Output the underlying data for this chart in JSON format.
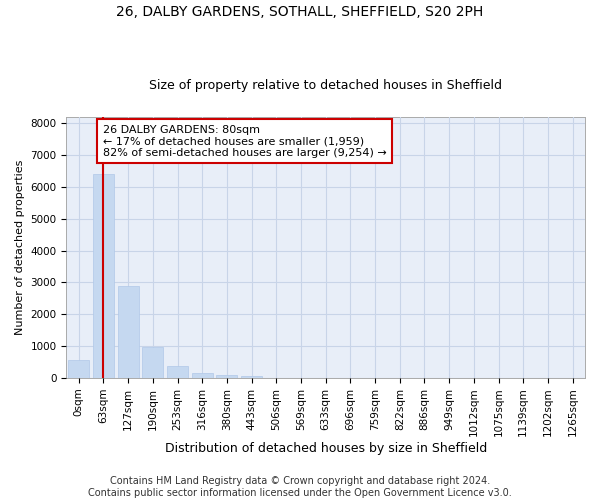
{
  "title1": "26, DALBY GARDENS, SOTHALL, SHEFFIELD, S20 2PH",
  "title2": "Size of property relative to detached houses in Sheffield",
  "xlabel": "Distribution of detached houses by size in Sheffield",
  "ylabel": "Number of detached properties",
  "bar_color": "#c5d8f0",
  "bar_edge_color": "#b0c8e8",
  "vline_color": "#cc0000",
  "vline_x": 1.0,
  "annotation_text": "26 DALBY GARDENS: 80sqm\n← 17% of detached houses are smaller (1,959)\n82% of semi-detached houses are larger (9,254) →",
  "annotation_box_color": "#cc0000",
  "bin_labels": [
    "0sqm",
    "63sqm",
    "127sqm",
    "190sqm",
    "253sqm",
    "316sqm",
    "380sqm",
    "443sqm",
    "506sqm",
    "569sqm",
    "633sqm",
    "696sqm",
    "759sqm",
    "822sqm",
    "886sqm",
    "949sqm",
    "1012sqm",
    "1075sqm",
    "1139sqm",
    "1202sqm",
    "1265sqm"
  ],
  "bar_heights": [
    560,
    6400,
    2900,
    960,
    380,
    165,
    90,
    60,
    0,
    0,
    0,
    0,
    0,
    0,
    0,
    0,
    0,
    0,
    0,
    0,
    0
  ],
  "ylim": [
    0,
    8200
  ],
  "yticks": [
    0,
    1000,
    2000,
    3000,
    4000,
    5000,
    6000,
    7000,
    8000
  ],
  "footer_text": "Contains HM Land Registry data © Crown copyright and database right 2024.\nContains public sector information licensed under the Open Government Licence v3.0.",
  "background_color": "#ffffff",
  "plot_bg_color": "#e8eef8",
  "grid_color": "#c8d4e8",
  "title1_fontsize": 10,
  "title2_fontsize": 9,
  "xlabel_fontsize": 9,
  "ylabel_fontsize": 8,
  "tick_fontsize": 7.5,
  "annotation_fontsize": 8,
  "footer_fontsize": 7
}
